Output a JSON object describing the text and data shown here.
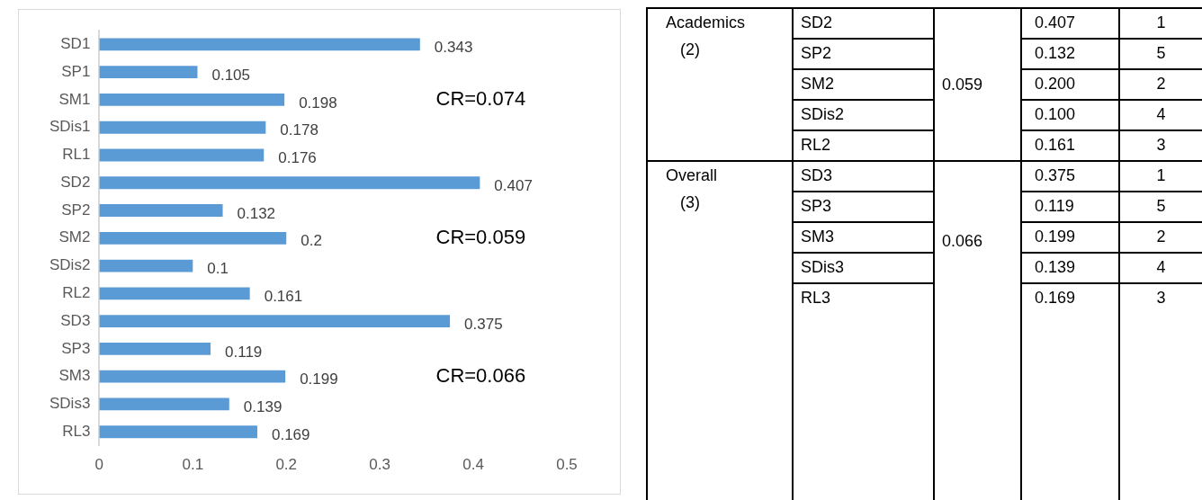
{
  "chart_data": [
    {
      "type": "bar",
      "orientation": "horizontal",
      "categories": [
        "SD1",
        "SP1",
        "SM1",
        "SDis1",
        "RL1",
        "SD2",
        "SP2",
        "SM2",
        "SDis2",
        "RL2",
        "SD3",
        "SP3",
        "SM3",
        "SDis3",
        "RL3"
      ],
      "values": [
        0.343,
        0.105,
        0.198,
        0.178,
        0.176,
        0.407,
        0.132,
        0.2,
        0.1,
        0.161,
        0.375,
        0.119,
        0.199,
        0.139,
        0.169
      ],
      "color": "#5b9bd5",
      "xlim": [
        0,
        0.5
      ],
      "xticks": [
        0,
        0.1,
        0.2,
        0.3,
        0.4,
        0.5
      ],
      "grid": false,
      "legend": false,
      "data_labels": true,
      "annotations": [
        "CR=0.074",
        "CR=0.059",
        "CR=0.066"
      ]
    },
    {
      "type": "other",
      "categories": [
        "SD2",
        "SP2",
        "SM2",
        "SDis2",
        "RL2",
        "SD3",
        "SP3",
        "SM3",
        "SDis3",
        "RL3"
      ],
      "data_labels": true,
      "series": [
        {
          "values": [
            0.407,
            0.132,
            0.2,
            0.1,
            0.161,
            0.375,
            0.119,
            0.199,
            0.139,
            0.169
          ],
          "value_labels": [
            "0.407",
            "0.132",
            "0.200",
            "0.100",
            "0.161",
            "0.375",
            "0.119",
            "0.199",
            "0.139",
            "0.169"
          ]
        },
        {
          "values": [
            1,
            5,
            2,
            4,
            3,
            1,
            5,
            2,
            4,
            3
          ]
        }
      ],
      "annotations": [
        "Academics (2)",
        "0.059",
        "Overall (3)",
        "0.066"
      ]
    }
  ]
}
